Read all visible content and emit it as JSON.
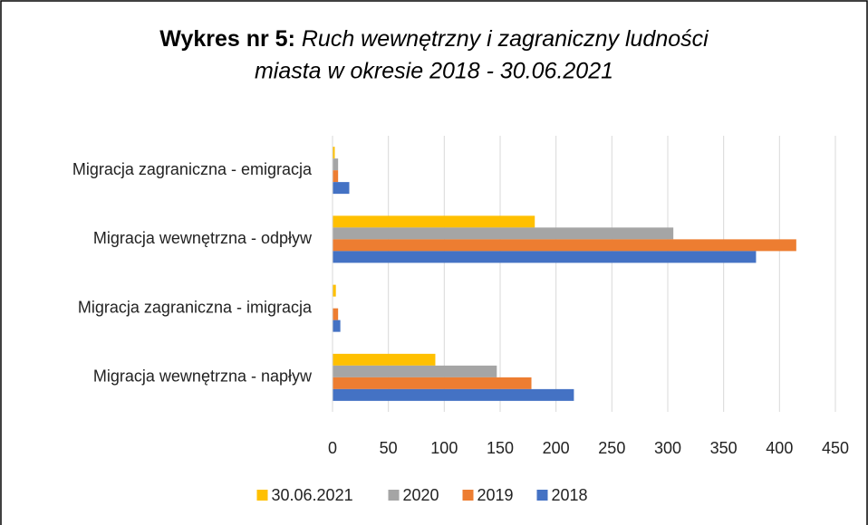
{
  "chart_data": {
    "type": "hbar",
    "title": {
      "label": "Wykres nr 5:",
      "lines": [
        "Ruch wewnętrzny i zagraniczny ludności",
        "miasta w okresie 2018 - 30.06.2021"
      ]
    },
    "categories": [
      "Migracja wewnętrzna - napływ",
      "Migracja zagraniczna - imigracja",
      "Migracja wewnętrzna - odpływ",
      "Migracja zagraniczna - emigracja"
    ],
    "series": [
      {
        "name": "30.06.2021",
        "color": "#FFC000",
        "values": [
          92,
          3,
          181,
          2
        ]
      },
      {
        "name": "2020",
        "color": "#A5A5A5",
        "values": [
          147,
          0,
          305,
          5
        ]
      },
      {
        "name": "2019",
        "color": "#ED7D31",
        "values": [
          178,
          5,
          415,
          5
        ]
      },
      {
        "name": "2018",
        "color": "#4472C4",
        "values": [
          216,
          7,
          379,
          15
        ]
      }
    ],
    "xlim": [
      0,
      450
    ],
    "xticks": [
      0,
      50,
      100,
      150,
      200,
      250,
      300,
      350,
      400,
      450
    ],
    "grid": true,
    "legend": "bottom"
  }
}
